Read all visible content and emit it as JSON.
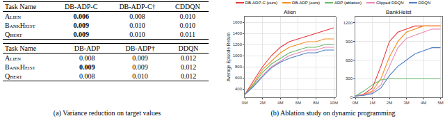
{
  "table": {
    "caption": "(a) Variance reduction on target values",
    "sections": [
      {
        "header": [
          "Task Name",
          "DB-ADP-C",
          "DB-ADP-C†",
          "CDDQN"
        ],
        "rows": [
          [
            "Alien",
            {
              "text": "0.006",
              "bold": true
            },
            "0.008",
            "0.010"
          ],
          [
            "BankHeist",
            {
              "text": "0.009",
              "bold": true
            },
            "0.010",
            "0.010"
          ],
          [
            "Qbert",
            {
              "text": "0.009",
              "bold": true
            },
            "0.010",
            "0.011"
          ]
        ]
      },
      {
        "header": [
          "Task Name",
          "DB-ADP",
          "DB-ADP†",
          "DDQN"
        ],
        "rows": [
          [
            "Alien",
            "0.008",
            "0.009",
            "0.012"
          ],
          [
            "BankHeist",
            {
              "text": "0.009",
              "bold": true
            },
            "0.009",
            "0.012"
          ],
          [
            "Qbert",
            "0.008",
            "0.010",
            "0.012"
          ]
        ]
      }
    ]
  },
  "chart_caption": "(b) Ablation study on dynamic programming",
  "chart_data": [
    {
      "type": "line",
      "title": "Alien",
      "y_label": "Average Episode Return",
      "grid": true,
      "legend": "top",
      "x": [
        0,
        1,
        2,
        3,
        4,
        5,
        6,
        7,
        8,
        9,
        10
      ],
      "xlim": [
        0,
        10.2
      ],
      "xticks": [
        {
          "value": 0,
          "label": "0M"
        },
        {
          "value": 2,
          "label": "2M"
        },
        {
          "value": 4,
          "label": "4M"
        },
        {
          "value": 6,
          "label": "6M"
        },
        {
          "value": 8,
          "label": "8M"
        },
        {
          "value": 10,
          "label": "10M"
        }
      ],
      "ylim": [
        250,
        1700
      ],
      "yticks": [
        400,
        600,
        800,
        1000,
        1200,
        1400,
        1600
      ],
      "series": [
        {
          "name": "DB-ADP-C (ours)",
          "color": "#e8383d",
          "values": [
            300,
            550,
            800,
            1000,
            1150,
            1250,
            1300,
            1350,
            1400,
            1450,
            1500
          ]
        },
        {
          "name": "DB-ADP (ours)",
          "color": "#f58c1e",
          "values": [
            300,
            500,
            750,
            900,
            1050,
            1150,
            1200,
            1250,
            1250,
            1300,
            1300
          ]
        },
        {
          "name": "ADP (ablation)",
          "color": "#66b86a",
          "values": [
            300,
            480,
            700,
            850,
            950,
            1050,
            1100,
            1150,
            1150,
            1200,
            1200
          ]
        },
        {
          "name": "Clipped DDQN",
          "color": "#e88ab4",
          "values": [
            300,
            450,
            650,
            800,
            900,
            1000,
            1050,
            1100,
            1100,
            1150,
            1150
          ]
        },
        {
          "name": "DDQN",
          "color": "#4d7fc4",
          "values": [
            300,
            450,
            620,
            780,
            880,
            950,
            1000,
            1050,
            1050,
            1100,
            1100
          ]
        }
      ]
    },
    {
      "type": "line",
      "title": "BankHeist",
      "grid": true,
      "x": [
        0,
        0.5,
        1,
        1.5,
        2,
        2.5,
        3,
        3.5,
        4,
        4.5,
        5
      ],
      "xlim": [
        0,
        5.1
      ],
      "xticks": [
        {
          "value": 0,
          "label": "0M"
        },
        {
          "value": 1,
          "label": "1M"
        },
        {
          "value": 2,
          "label": "2M"
        },
        {
          "value": 3,
          "label": "3M"
        },
        {
          "value": 4,
          "label": "4M"
        },
        {
          "value": 5,
          "label": "5M"
        }
      ],
      "ylim": [
        0,
        1300
      ],
      "yticks": [
        0,
        300,
        600,
        900,
        1200
      ],
      "series": [
        {
          "name": "DB-ADP-C (ours)",
          "color": "#e8383d",
          "values": [
            20,
            50,
            150,
            500,
            900,
            1050,
            1100,
            1150,
            1150,
            1150,
            1150
          ]
        },
        {
          "name": "DB-ADP (ours)",
          "color": "#f58c1e",
          "values": [
            20,
            40,
            100,
            300,
            650,
            900,
            1050,
            1100,
            1150,
            1150,
            1150
          ]
        },
        {
          "name": "ADP (ablation)",
          "color": "#66b86a",
          "values": [
            20,
            100,
            200,
            280,
            300,
            300,
            300,
            300,
            300,
            300,
            300
          ]
        },
        {
          "name": "Clipped DDQN",
          "color": "#e88ab4",
          "values": [
            20,
            40,
            80,
            200,
            500,
            800,
            950,
            1000,
            1050,
            1100,
            1100
          ]
        },
        {
          "name": "DDQN",
          "color": "#4d7fc4",
          "values": [
            20,
            30,
            60,
            150,
            350,
            500,
            600,
            700,
            750,
            800,
            800
          ]
        }
      ]
    }
  ]
}
